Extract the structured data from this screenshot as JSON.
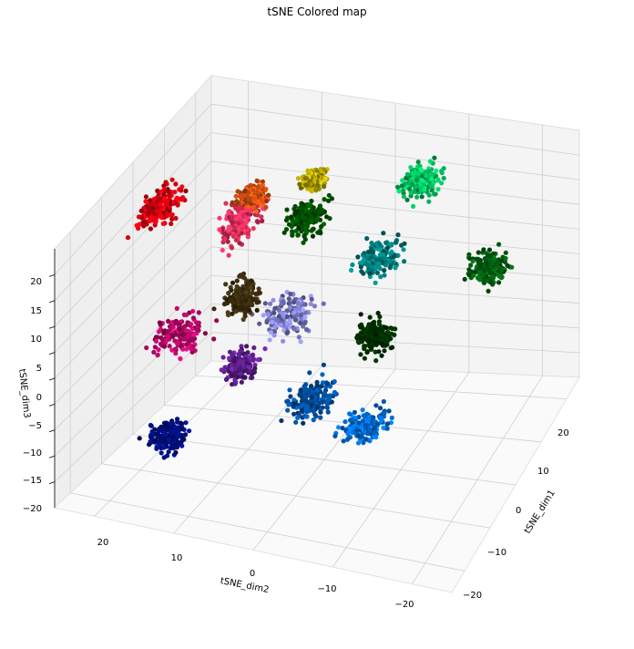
{
  "chart_data": {
    "type": "scatter",
    "title": "tSNE Colored map",
    "xlabel": "tSNE_dim1",
    "ylabel": "tSNE_dim2",
    "zlabel": "tSNE_dim3",
    "x_ticks": [
      "−20",
      "−10",
      "0",
      "10",
      "20"
    ],
    "y_ticks": [
      "20",
      "10",
      "0",
      "−10",
      "−20"
    ],
    "z_ticks": [
      "20",
      "15",
      "10",
      "5",
      "0",
      "−5",
      "−10",
      "−15",
      "−20"
    ],
    "grid": true,
    "series": [
      {
        "color": "#e00010",
        "x": [
          -5,
          9
        ],
        "y": [
          20,
          25
        ],
        "z": [
          13,
          19
        ]
      },
      {
        "color": "#f03060",
        "x": [
          -2,
          12
        ],
        "y": [
          10,
          16
        ],
        "z": [
          11,
          18
        ]
      },
      {
        "color": "#b80868",
        "x": [
          -14,
          0
        ],
        "y": [
          12,
          20
        ],
        "z": [
          -3,
          3
        ]
      },
      {
        "color": "#d05010",
        "x": [
          4,
          12
        ],
        "y": [
          10,
          15
        ],
        "z": [
          14,
          20
        ]
      },
      {
        "color": "#b8a800",
        "x": [
          14,
          20
        ],
        "y": [
          6,
          10
        ],
        "z": [
          13,
          17
        ]
      },
      {
        "color": "#005000",
        "x": [
          5,
          14
        ],
        "y": [
          3,
          9
        ],
        "z": [
          10,
          17
        ]
      },
      {
        "color": "#403010",
        "x": [
          -10,
          0
        ],
        "y": [
          6,
          12
        ],
        "z": [
          4,
          12
        ]
      },
      {
        "color": "#8080d0",
        "x": [
          -9,
          5
        ],
        "y": [
          0,
          8
        ],
        "z": [
          1,
          7
        ]
      },
      {
        "color": "#00c060",
        "x": [
          15,
          24
        ],
        "y": [
          -9,
          -2
        ],
        "z": [
          12,
          19
        ]
      },
      {
        "color": "#008080",
        "x": [
          5,
          15
        ],
        "y": [
          -7,
          0
        ],
        "z": [
          5,
          11
        ]
      },
      {
        "color": "#006010",
        "x": [
          10,
          18
        ],
        "y": [
          -20,
          -13
        ],
        "z": [
          2,
          9
        ]
      },
      {
        "color": "#003000",
        "x": [
          -5,
          3
        ],
        "y": [
          -10,
          -4
        ],
        "z": [
          -1,
          5
        ]
      },
      {
        "color": "#0050a0",
        "x": [
          -14,
          -2
        ],
        "y": [
          -5,
          2
        ],
        "z": [
          -10,
          -3
        ]
      },
      {
        "color": "#0070e0",
        "x": [
          -15,
          -5
        ],
        "y": [
          -13,
          -5
        ],
        "z": [
          -11,
          -5
        ]
      },
      {
        "color": "#001080",
        "x": [
          -24,
          -13
        ],
        "y": [
          10,
          16
        ],
        "z": [
          -14,
          -8
        ]
      },
      {
        "color": "#602090",
        "x": [
          -14,
          -6
        ],
        "y": [
          4,
          10
        ],
        "z": [
          -4,
          2
        ]
      }
    ]
  }
}
